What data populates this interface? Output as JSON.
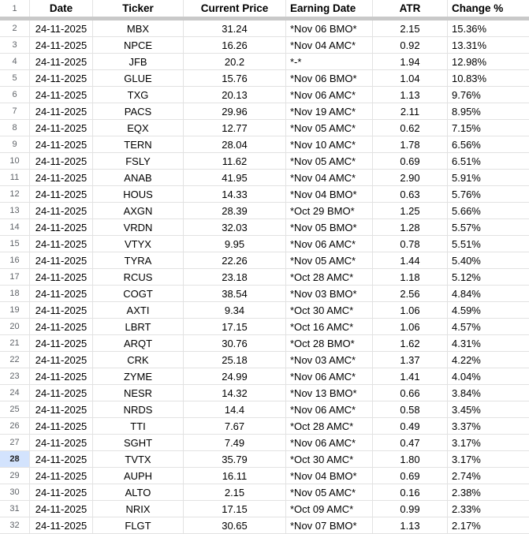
{
  "sheet": {
    "header_row_number": "1",
    "selected_row_number": "28",
    "columns": [
      {
        "key": "date",
        "label": "Date"
      },
      {
        "key": "ticker",
        "label": "Ticker"
      },
      {
        "key": "price",
        "label": "Current Price"
      },
      {
        "key": "earning",
        "label": "Earning Date"
      },
      {
        "key": "atr",
        "label": "ATR"
      },
      {
        "key": "change",
        "label": "Change %"
      }
    ],
    "rows": [
      {
        "num": "2",
        "date": "24-11-2025",
        "ticker": "MBX",
        "price": "31.24",
        "earning": "*Nov 06 BMO*",
        "atr": "2.15",
        "change": "15.36%"
      },
      {
        "num": "3",
        "date": "24-11-2025",
        "ticker": "NPCE",
        "price": "16.26",
        "earning": "*Nov 04 AMC*",
        "atr": "0.92",
        "change": "13.31%"
      },
      {
        "num": "4",
        "date": "24-11-2025",
        "ticker": "JFB",
        "price": "20.2",
        "earning": "*-*",
        "atr": "1.94",
        "change": "12.98%"
      },
      {
        "num": "5",
        "date": "24-11-2025",
        "ticker": "GLUE",
        "price": "15.76",
        "earning": "*Nov 06 BMO*",
        "atr": "1.04",
        "change": "10.83%"
      },
      {
        "num": "6",
        "date": "24-11-2025",
        "ticker": "TXG",
        "price": "20.13",
        "earning": "*Nov 06 AMC*",
        "atr": "1.13",
        "change": "9.76%"
      },
      {
        "num": "7",
        "date": "24-11-2025",
        "ticker": "PACS",
        "price": "29.96",
        "earning": "*Nov 19 AMC*",
        "atr": "2.11",
        "change": "8.95%"
      },
      {
        "num": "8",
        "date": "24-11-2025",
        "ticker": "EQX",
        "price": "12.77",
        "earning": "*Nov 05 AMC*",
        "atr": "0.62",
        "change": "7.15%"
      },
      {
        "num": "9",
        "date": "24-11-2025",
        "ticker": "TERN",
        "price": "28.04",
        "earning": "*Nov 10 AMC*",
        "atr": "1.78",
        "change": "6.56%"
      },
      {
        "num": "10",
        "date": "24-11-2025",
        "ticker": "FSLY",
        "price": "11.62",
        "earning": "*Nov 05 AMC*",
        "atr": "0.69",
        "change": "6.51%"
      },
      {
        "num": "11",
        "date": "24-11-2025",
        "ticker": "ANAB",
        "price": "41.95",
        "earning": "*Nov 04 AMC*",
        "atr": "2.90",
        "change": "5.91%"
      },
      {
        "num": "12",
        "date": "24-11-2025",
        "ticker": "HOUS",
        "price": "14.33",
        "earning": "*Nov 04 BMO*",
        "atr": "0.63",
        "change": "5.76%"
      },
      {
        "num": "13",
        "date": "24-11-2025",
        "ticker": "AXGN",
        "price": "28.39",
        "earning": "*Oct 29 BMO*",
        "atr": "1.25",
        "change": "5.66%"
      },
      {
        "num": "14",
        "date": "24-11-2025",
        "ticker": "VRDN",
        "price": "32.03",
        "earning": "*Nov 05 BMO*",
        "atr": "1.28",
        "change": "5.57%"
      },
      {
        "num": "15",
        "date": "24-11-2025",
        "ticker": "VTYX",
        "price": "9.95",
        "earning": "*Nov 06 AMC*",
        "atr": "0.78",
        "change": "5.51%"
      },
      {
        "num": "16",
        "date": "24-11-2025",
        "ticker": "TYRA",
        "price": "22.26",
        "earning": "*Nov 05 AMC*",
        "atr": "1.44",
        "change": "5.40%"
      },
      {
        "num": "17",
        "date": "24-11-2025",
        "ticker": "RCUS",
        "price": "23.18",
        "earning": "*Oct 28 AMC*",
        "atr": "1.18",
        "change": "5.12%"
      },
      {
        "num": "18",
        "date": "24-11-2025",
        "ticker": "COGT",
        "price": "38.54",
        "earning": "*Nov 03 BMO*",
        "atr": "2.56",
        "change": "4.84%"
      },
      {
        "num": "19",
        "date": "24-11-2025",
        "ticker": "AXTI",
        "price": "9.34",
        "earning": "*Oct 30 AMC*",
        "atr": "1.06",
        "change": "4.59%"
      },
      {
        "num": "20",
        "date": "24-11-2025",
        "ticker": "LBRT",
        "price": "17.15",
        "earning": "*Oct 16 AMC*",
        "atr": "1.06",
        "change": "4.57%"
      },
      {
        "num": "21",
        "date": "24-11-2025",
        "ticker": "ARQT",
        "price": "30.76",
        "earning": "*Oct 28 BMO*",
        "atr": "1.62",
        "change": "4.31%"
      },
      {
        "num": "22",
        "date": "24-11-2025",
        "ticker": "CRK",
        "price": "25.18",
        "earning": "*Nov 03 AMC*",
        "atr": "1.37",
        "change": "4.22%"
      },
      {
        "num": "23",
        "date": "24-11-2025",
        "ticker": "ZYME",
        "price": "24.99",
        "earning": "*Nov 06 AMC*",
        "atr": "1.41",
        "change": "4.04%"
      },
      {
        "num": "24",
        "date": "24-11-2025",
        "ticker": "NESR",
        "price": "14.32",
        "earning": "*Nov 13 BMO*",
        "atr": "0.66",
        "change": "3.84%"
      },
      {
        "num": "25",
        "date": "24-11-2025",
        "ticker": "NRDS",
        "price": "14.4",
        "earning": "*Nov 06 AMC*",
        "atr": "0.58",
        "change": "3.45%"
      },
      {
        "num": "26",
        "date": "24-11-2025",
        "ticker": "TTI",
        "price": "7.67",
        "earning": "*Oct 28 AMC*",
        "atr": "0.49",
        "change": "3.37%"
      },
      {
        "num": "27",
        "date": "24-11-2025",
        "ticker": "SGHT",
        "price": "7.49",
        "earning": "*Nov 06 AMC*",
        "atr": "0.47",
        "change": "3.17%"
      },
      {
        "num": "28",
        "date": "24-11-2025",
        "ticker": "TVTX",
        "price": "35.79",
        "earning": "*Oct 30 AMC*",
        "atr": "1.80",
        "change": "3.17%"
      },
      {
        "num": "29",
        "date": "24-11-2025",
        "ticker": "AUPH",
        "price": "16.11",
        "earning": "*Nov 04 BMO*",
        "atr": "0.69",
        "change": "2.74%"
      },
      {
        "num": "30",
        "date": "24-11-2025",
        "ticker": "ALTO",
        "price": "2.15",
        "earning": "*Nov 05 AMC*",
        "atr": "0.16",
        "change": "2.38%"
      },
      {
        "num": "31",
        "date": "24-11-2025",
        "ticker": "NRIX",
        "price": "17.15",
        "earning": "*Oct 09 AMC*",
        "atr": "0.99",
        "change": "2.33%"
      },
      {
        "num": "32",
        "date": "24-11-2025",
        "ticker": "FLGT",
        "price": "30.65",
        "earning": "*Nov 07 BMO*",
        "atr": "1.13",
        "change": "2.17%"
      }
    ],
    "colors": {
      "gridline": "#e2e2e2",
      "frozen_divider": "#c9c9c9",
      "row_number_text": "#5f6368",
      "selected_row_header_bg": "#d3e3fd",
      "selected_row_header_text": "#202124",
      "cell_text": "#000000"
    }
  }
}
